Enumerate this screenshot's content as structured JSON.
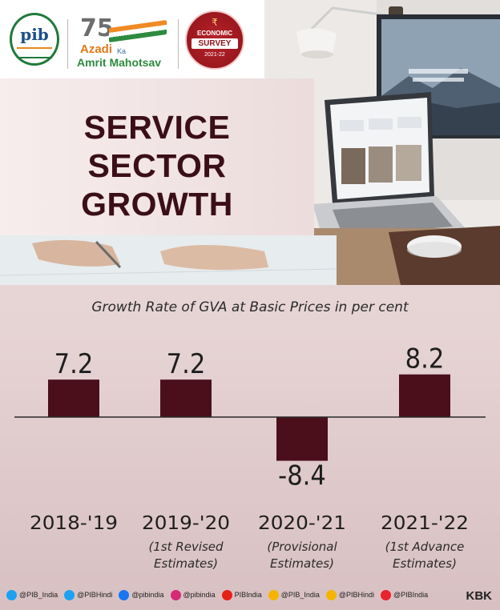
{
  "header": {
    "pib_logo": "pib",
    "azadi": {
      "number": "75",
      "line1": "Azadi",
      "line2": "Ka",
      "line3": "Amrit Mahotsav"
    },
    "survey_badge": {
      "line1": "ECONOMIC",
      "line2": "SURVEY",
      "line3": "2021-22"
    }
  },
  "title": {
    "line1": "SERVICE",
    "line2": "SECTOR",
    "line3": "GROWTH"
  },
  "chart_data": {
    "type": "bar",
    "title": "Growth Rate of GVA at Basic Prices in per cent",
    "categories": [
      "2018-'19",
      "2019-'20",
      "2020-'21",
      "2021-'22"
    ],
    "category_notes": [
      [],
      [
        "(1st Revised",
        "Estimates)"
      ],
      [
        "(Provisional",
        "Estimates)"
      ],
      [
        "(1st Advance",
        "Estimates)"
      ]
    ],
    "values": [
      7.2,
      7.2,
      -8.4,
      8.2
    ],
    "value_labels": [
      "7.2",
      "7.2",
      "-8.4",
      "8.2"
    ],
    "bar_color": "#4a0f1b",
    "grid": false,
    "legend": "none"
  },
  "footer": {
    "handles": [
      {
        "icon": "twitter-icon",
        "color": "#1da1f2",
        "label": "@PIB_India"
      },
      {
        "icon": "twitter-icon",
        "color": "#1da1f2",
        "label": "@PIBHindi"
      },
      {
        "icon": "facebook-icon",
        "color": "#1877f2",
        "label": "@pibindia"
      },
      {
        "icon": "instagram-icon",
        "color": "#d62976",
        "label": "@pibindia"
      },
      {
        "icon": "youtube-icon",
        "color": "#e62117",
        "label": "PIBIndia"
      },
      {
        "icon": "koo-icon",
        "color": "#f4b400",
        "label": "@PIB_India"
      },
      {
        "icon": "koo-icon",
        "color": "#f4b400",
        "label": "@PIBHindi"
      },
      {
        "icon": "sharechat-icon",
        "color": "#e8232e",
        "label": "@PIBIndia"
      }
    ],
    "credit": "KBK"
  }
}
